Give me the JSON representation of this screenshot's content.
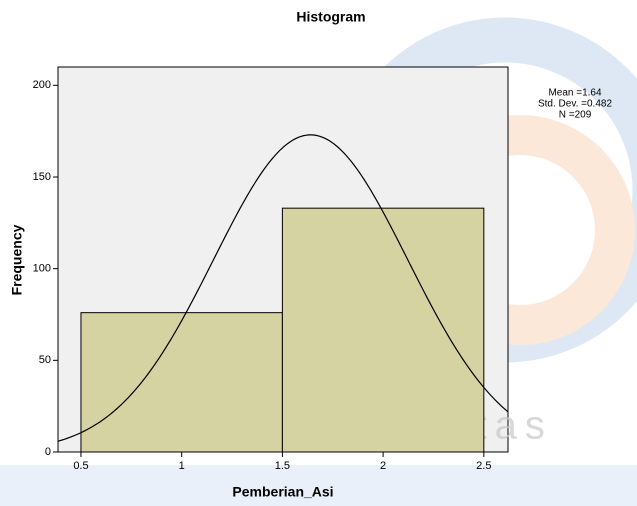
{
  "chart_data": {
    "type": "histogram",
    "title": "Histogram",
    "x_label": "Pemberian_Asi",
    "y_label": "Frequency",
    "bins": [
      0.5,
      1.5,
      2.5
    ],
    "counts": [
      76,
      133
    ],
    "color": "#d6d3a2",
    "xlim": [
      0.386,
      2.62
    ],
    "xticks": [
      0.5,
      1,
      1.5,
      2,
      2.5
    ],
    "ylim": [
      0,
      210
    ],
    "yticks": [
      0,
      50,
      100,
      150,
      200
    ],
    "stats": [
      {
        "value": 1.64,
        "label": "Mean =1.64"
      },
      {
        "value": 0.482,
        "label": "Std. Dev. =0.482"
      },
      {
        "value": 209,
        "label": "N =209"
      }
    ],
    "watermark": "Universitas"
  }
}
